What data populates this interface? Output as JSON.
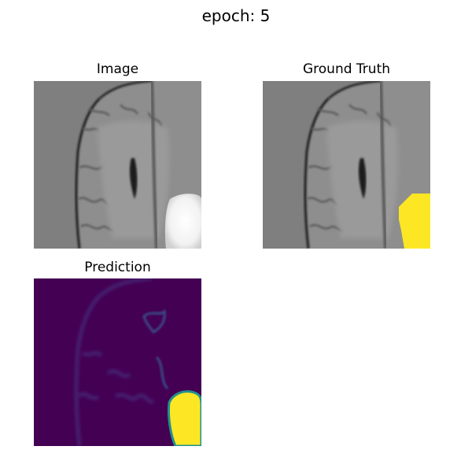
{
  "figure": {
    "suptitle": "epoch: 5"
  },
  "panels": [
    {
      "title": "Image"
    },
    {
      "title": "Ground Truth"
    },
    {
      "title": "Prediction"
    }
  ],
  "colors": {
    "background_gray": "#7f7f7f",
    "mask_yellow": "#fde725",
    "prediction_background": "#440154",
    "prediction_structure": "#3b528b"
  }
}
